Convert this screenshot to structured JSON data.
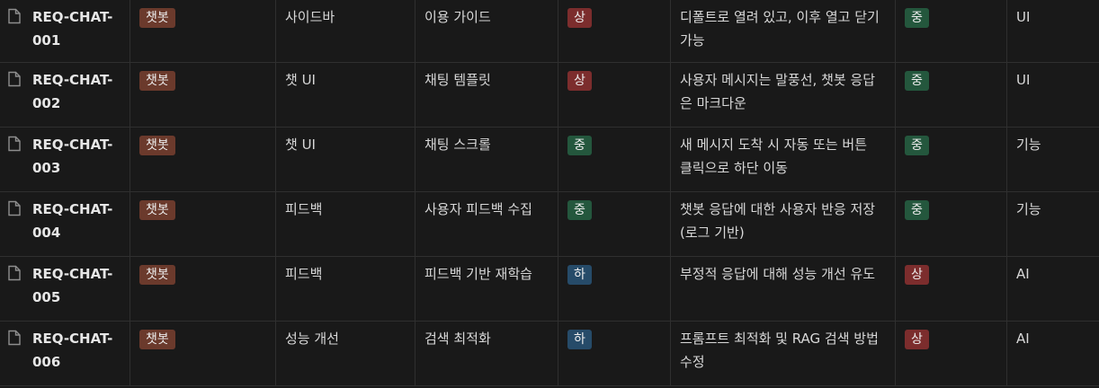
{
  "colors": {
    "background": "#191919",
    "tag_brown": "#6b3a2c",
    "tag_red": "#7c2d2d",
    "tag_green": "#24573d",
    "tag_blue": "#264b69"
  },
  "icons": {
    "row_icon": "page-icon"
  },
  "rows": [
    {
      "id": "REQ-CHAT-001",
      "type": "챗봇",
      "category": "사이드바",
      "title": "이용 가이드",
      "priority": "상",
      "priority_color": "red",
      "description": "디폴트로 열려 있고, 이후 열고 닫기 가능",
      "difficulty": "중",
      "difficulty_color": "green",
      "kind": "UI"
    },
    {
      "id": "REQ-CHAT-002",
      "type": "챗봇",
      "category": "챗 UI",
      "title": "채팅 템플릿",
      "priority": "상",
      "priority_color": "red",
      "description": "사용자 메시지는 말풍선, 챗봇 응답은 마크다운",
      "difficulty": "중",
      "difficulty_color": "green",
      "kind": "UI"
    },
    {
      "id": "REQ-CHAT-003",
      "type": "챗봇",
      "category": "챗 UI",
      "title": "채팅 스크롤",
      "priority": "중",
      "priority_color": "green",
      "description": "새 메시지 도착 시 자동 또는 버튼 클릭으로 하단 이동",
      "difficulty": "중",
      "difficulty_color": "green",
      "kind": "기능"
    },
    {
      "id": "REQ-CHAT-004",
      "type": "챗봇",
      "category": "피드백",
      "title": "사용자 피드백 수집",
      "priority": "중",
      "priority_color": "green",
      "description": "챗봇 응답에 대한 사용자 반응 저장 (로그 기반)",
      "difficulty": "중",
      "difficulty_color": "green",
      "kind": "기능"
    },
    {
      "id": "REQ-CHAT-005",
      "type": "챗봇",
      "category": "피드백",
      "title": "피드백 기반 재학습",
      "priority": "하",
      "priority_color": "blue",
      "description": "부정적 응답에 대해 성능 개선 유도",
      "difficulty": "상",
      "difficulty_color": "red",
      "kind": "AI"
    },
    {
      "id": "REQ-CHAT-006",
      "type": "챗봇",
      "category": "성능 개선",
      "title": "검색 최적화",
      "priority": "하",
      "priority_color": "blue",
      "description": "프롬프트 최적화 및 RAG 검색 방법 수정",
      "difficulty": "상",
      "difficulty_color": "red",
      "kind": "AI"
    }
  ]
}
